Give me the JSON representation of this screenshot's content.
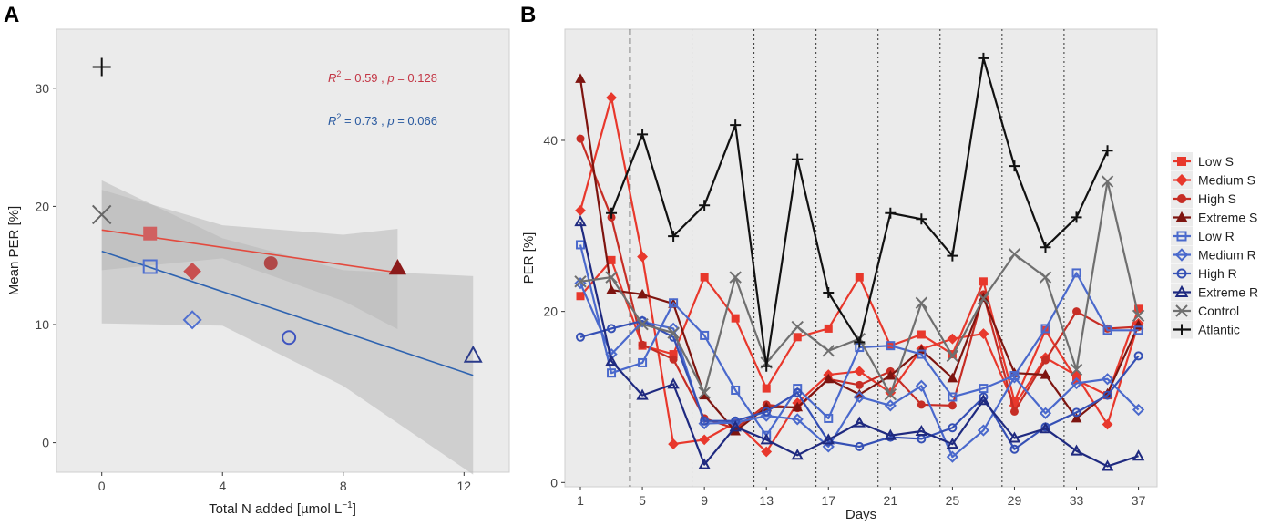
{
  "chart_data": [
    {
      "type": "scatter",
      "panel_label": "A",
      "xlabel": "Total N added [µmol L⁻¹]",
      "ylabel": "Mean PER [%]",
      "xlim": [
        -1.5,
        13.5
      ],
      "ylim": [
        -2.5,
        35
      ],
      "xticks": [
        0,
        4,
        8,
        12
      ],
      "yticks": [
        0,
        10,
        20,
        30
      ],
      "points": [
        {
          "name": "Atlantic",
          "x": 0,
          "y": 31.8,
          "marker": "plus",
          "color": "#111111"
        },
        {
          "name": "Control",
          "x": 0,
          "y": 19.3,
          "marker": "x",
          "color": "#666666"
        },
        {
          "name": "Low S",
          "x": 1.6,
          "y": 17.7,
          "marker": "square",
          "color": "#d06060"
        },
        {
          "name": "Medium S",
          "x": 3.0,
          "y": 14.5,
          "marker": "diamond",
          "color": "#c85050"
        },
        {
          "name": "High S",
          "x": 5.6,
          "y": 15.2,
          "marker": "circle",
          "color": "#b04848"
        },
        {
          "name": "Extreme S",
          "x": 9.8,
          "y": 14.8,
          "marker": "triangle",
          "color": "#8b1a1a"
        },
        {
          "name": "Low R",
          "x": 1.6,
          "y": 14.9,
          "marker": "square-open",
          "color": "#4f6fd0"
        },
        {
          "name": "Medium R",
          "x": 3.0,
          "y": 10.4,
          "marker": "diamond-open",
          "color": "#4f6fd0"
        },
        {
          "name": "High R",
          "x": 6.2,
          "y": 8.9,
          "marker": "circle-open",
          "color": "#3f55c0"
        },
        {
          "name": "Extreme R",
          "x": 12.3,
          "y": 7.4,
          "marker": "triangle-open",
          "color": "#2a3a8a"
        }
      ],
      "fits": [
        {
          "name": "S",
          "color": "#e34a3e",
          "x": [
            0,
            9.8
          ],
          "y": [
            18.0,
            14.4
          ],
          "band_upper_x": [
            0,
            4,
            8,
            9.8
          ],
          "band_upper": [
            21.4,
            18.4,
            17.6,
            18.1
          ],
          "band_lower_x": [
            0,
            4,
            8,
            9.8
          ],
          "band_lower": [
            14.6,
            15.6,
            12.0,
            9.6
          ],
          "annotation": {
            "r2": "0.59",
            "p": "0.128"
          }
        },
        {
          "name": "R",
          "color": "#2e63b0",
          "x": [
            0,
            12.3
          ],
          "y": [
            16.2,
            5.7
          ],
          "band_upper_x": [
            0,
            4,
            8,
            12.3
          ],
          "band_upper": [
            22.2,
            17.3,
            14.6,
            14.1
          ],
          "band_lower_x": [
            0,
            4,
            8,
            12.3
          ],
          "band_lower": [
            10.1,
            9.9,
            4.8,
            -2.7
          ],
          "annotation": {
            "r2": "0.73",
            "p": "0.066"
          }
        }
      ]
    },
    {
      "type": "line",
      "panel_label": "B",
      "xlabel": "Days",
      "ylabel": "PER [%]",
      "xlim": [
        0,
        38.2
      ],
      "ylim": [
        -0.5,
        53
      ],
      "xticks": [
        1,
        5,
        9,
        13,
        17,
        21,
        25,
        29,
        33,
        37
      ],
      "yticks": [
        0,
        20,
        40
      ],
      "dashed_vline": 4.2,
      "dotted_vlines": [
        8.2,
        12.2,
        16.2,
        20.2,
        24.2,
        28.2,
        32.2
      ],
      "x": [
        1,
        3,
        5,
        7,
        9,
        11,
        13,
        15,
        17,
        19,
        21,
        23,
        25,
        27,
        29,
        31,
        33,
        35,
        37
      ],
      "series": [
        {
          "name": "Low S",
          "color": "#e8382c",
          "marker": "square",
          "filled": true,
          "values": [
            21.8,
            26.0,
            16.0,
            15.0,
            24.0,
            19.2,
            11.0,
            17.0,
            18.0,
            24.0,
            16.0,
            17.3,
            15.0,
            23.5,
            9.5,
            17.8,
            12.0,
            10.2,
            20.3
          ]
        },
        {
          "name": "Medium S",
          "color": "#e8382c",
          "marker": "diamond",
          "filled": true,
          "values": [
            31.8,
            45.0,
            26.4,
            4.5,
            5.0,
            7.0,
            3.6,
            9.3,
            12.6,
            13.0,
            10.5,
            15.6,
            16.8,
            17.4,
            9.0,
            14.6,
            12.5,
            6.8,
            18.6
          ]
        },
        {
          "name": "High S",
          "color": "#c62d25",
          "marker": "circle",
          "filled": true,
          "values": [
            40.2,
            31.0,
            16.1,
            14.4,
            7.5,
            6.3,
            9.1,
            8.7,
            12.1,
            11.4,
            13.0,
            9.1,
            9.0,
            22.0,
            8.3,
            14.3,
            20.0,
            18.0,
            18.2
          ]
        },
        {
          "name": "Extreme S",
          "color": "#7e1510",
          "marker": "triangle",
          "filled": true,
          "values": [
            47.2,
            22.5,
            22.0,
            20.9,
            10.2,
            6.0,
            8.8,
            8.8,
            12.1,
            10.3,
            12.5,
            15.5,
            12.2,
            21.6,
            12.8,
            12.6,
            7.5,
            10.4,
            18.4
          ]
        },
        {
          "name": "Low R",
          "color": "#4a69cc",
          "marker": "square-open",
          "filled": false,
          "values": [
            27.8,
            12.8,
            14.0,
            21.0,
            17.2,
            10.8,
            5.5,
            11.0,
            7.5,
            15.8,
            16.0,
            15.0,
            10.0,
            11.0,
            12.5,
            18.0,
            24.5,
            17.8,
            17.8
          ]
        },
        {
          "name": "Medium R",
          "color": "#4a69cc",
          "marker": "diamond-open",
          "filled": false,
          "values": [
            23.3,
            15.0,
            18.8,
            18.0,
            6.9,
            7.0,
            7.8,
            7.4,
            4.2,
            10.0,
            9.0,
            11.3,
            3.0,
            6.1,
            12.3,
            8.1,
            11.6,
            12.1,
            8.5
          ]
        },
        {
          "name": "High R",
          "color": "#3550b5",
          "marker": "circle-open",
          "filled": false,
          "values": [
            17.0,
            18.0,
            18.9,
            17.0,
            7.2,
            7.2,
            8.3,
            10.5,
            4.8,
            4.2,
            5.3,
            5.1,
            6.4,
            10.0,
            3.9,
            6.5,
            8.2,
            10.2,
            14.8
          ]
        },
        {
          "name": "Extreme R",
          "color": "#1f2a80",
          "marker": "triangle-open",
          "filled": false,
          "values": [
            30.5,
            14.2,
            10.2,
            11.5,
            2.1,
            6.5,
            5.0,
            3.2,
            5.0,
            7.0,
            5.5,
            6.0,
            4.5,
            9.6,
            5.2,
            6.3,
            3.7,
            1.9,
            3.1
          ]
        },
        {
          "name": "Control",
          "color": "#6f6f6f",
          "marker": "x",
          "filled": false,
          "values": [
            23.5,
            24.0,
            18.5,
            17.5,
            10.5,
            24.0,
            14.0,
            18.2,
            15.4,
            16.8,
            10.3,
            21.0,
            14.8,
            21.5,
            26.7,
            24.0,
            13.2,
            35.2,
            19.5
          ]
        },
        {
          "name": "Atlantic",
          "color": "#111111",
          "marker": "plus",
          "filled": false,
          "values": [
            null,
            31.5,
            40.7,
            28.8,
            32.4,
            41.8,
            13.6,
            37.8,
            22.2,
            16.4,
            31.5,
            30.8,
            26.5,
            49.6,
            37.0,
            27.5,
            31.0,
            38.8,
            null
          ]
        }
      ]
    }
  ],
  "labels": {
    "panel_a": "A",
    "panel_b": "B",
    "a_xlabel_main": "Total N added [µmol L",
    "a_xlabel_sup": "−1",
    "a_xlabel_end": "]",
    "a_ylabel": "Mean PER [%]",
    "b_xlabel": "Days",
    "b_ylabel": "PER [%]",
    "ann_r": "R",
    "ann_sup": "2",
    "ann_p": "p",
    "ann1_r2": " = 0.59 , ",
    "ann1_p": " = 0.128",
    "ann2_r2": " = 0.73 , ",
    "ann2_p": " = 0.066"
  },
  "colors": {
    "panel_bg": "#ebebeb",
    "band": "#b8b8b8",
    "ann1": "#c33645",
    "ann2": "#2a5aa0"
  }
}
